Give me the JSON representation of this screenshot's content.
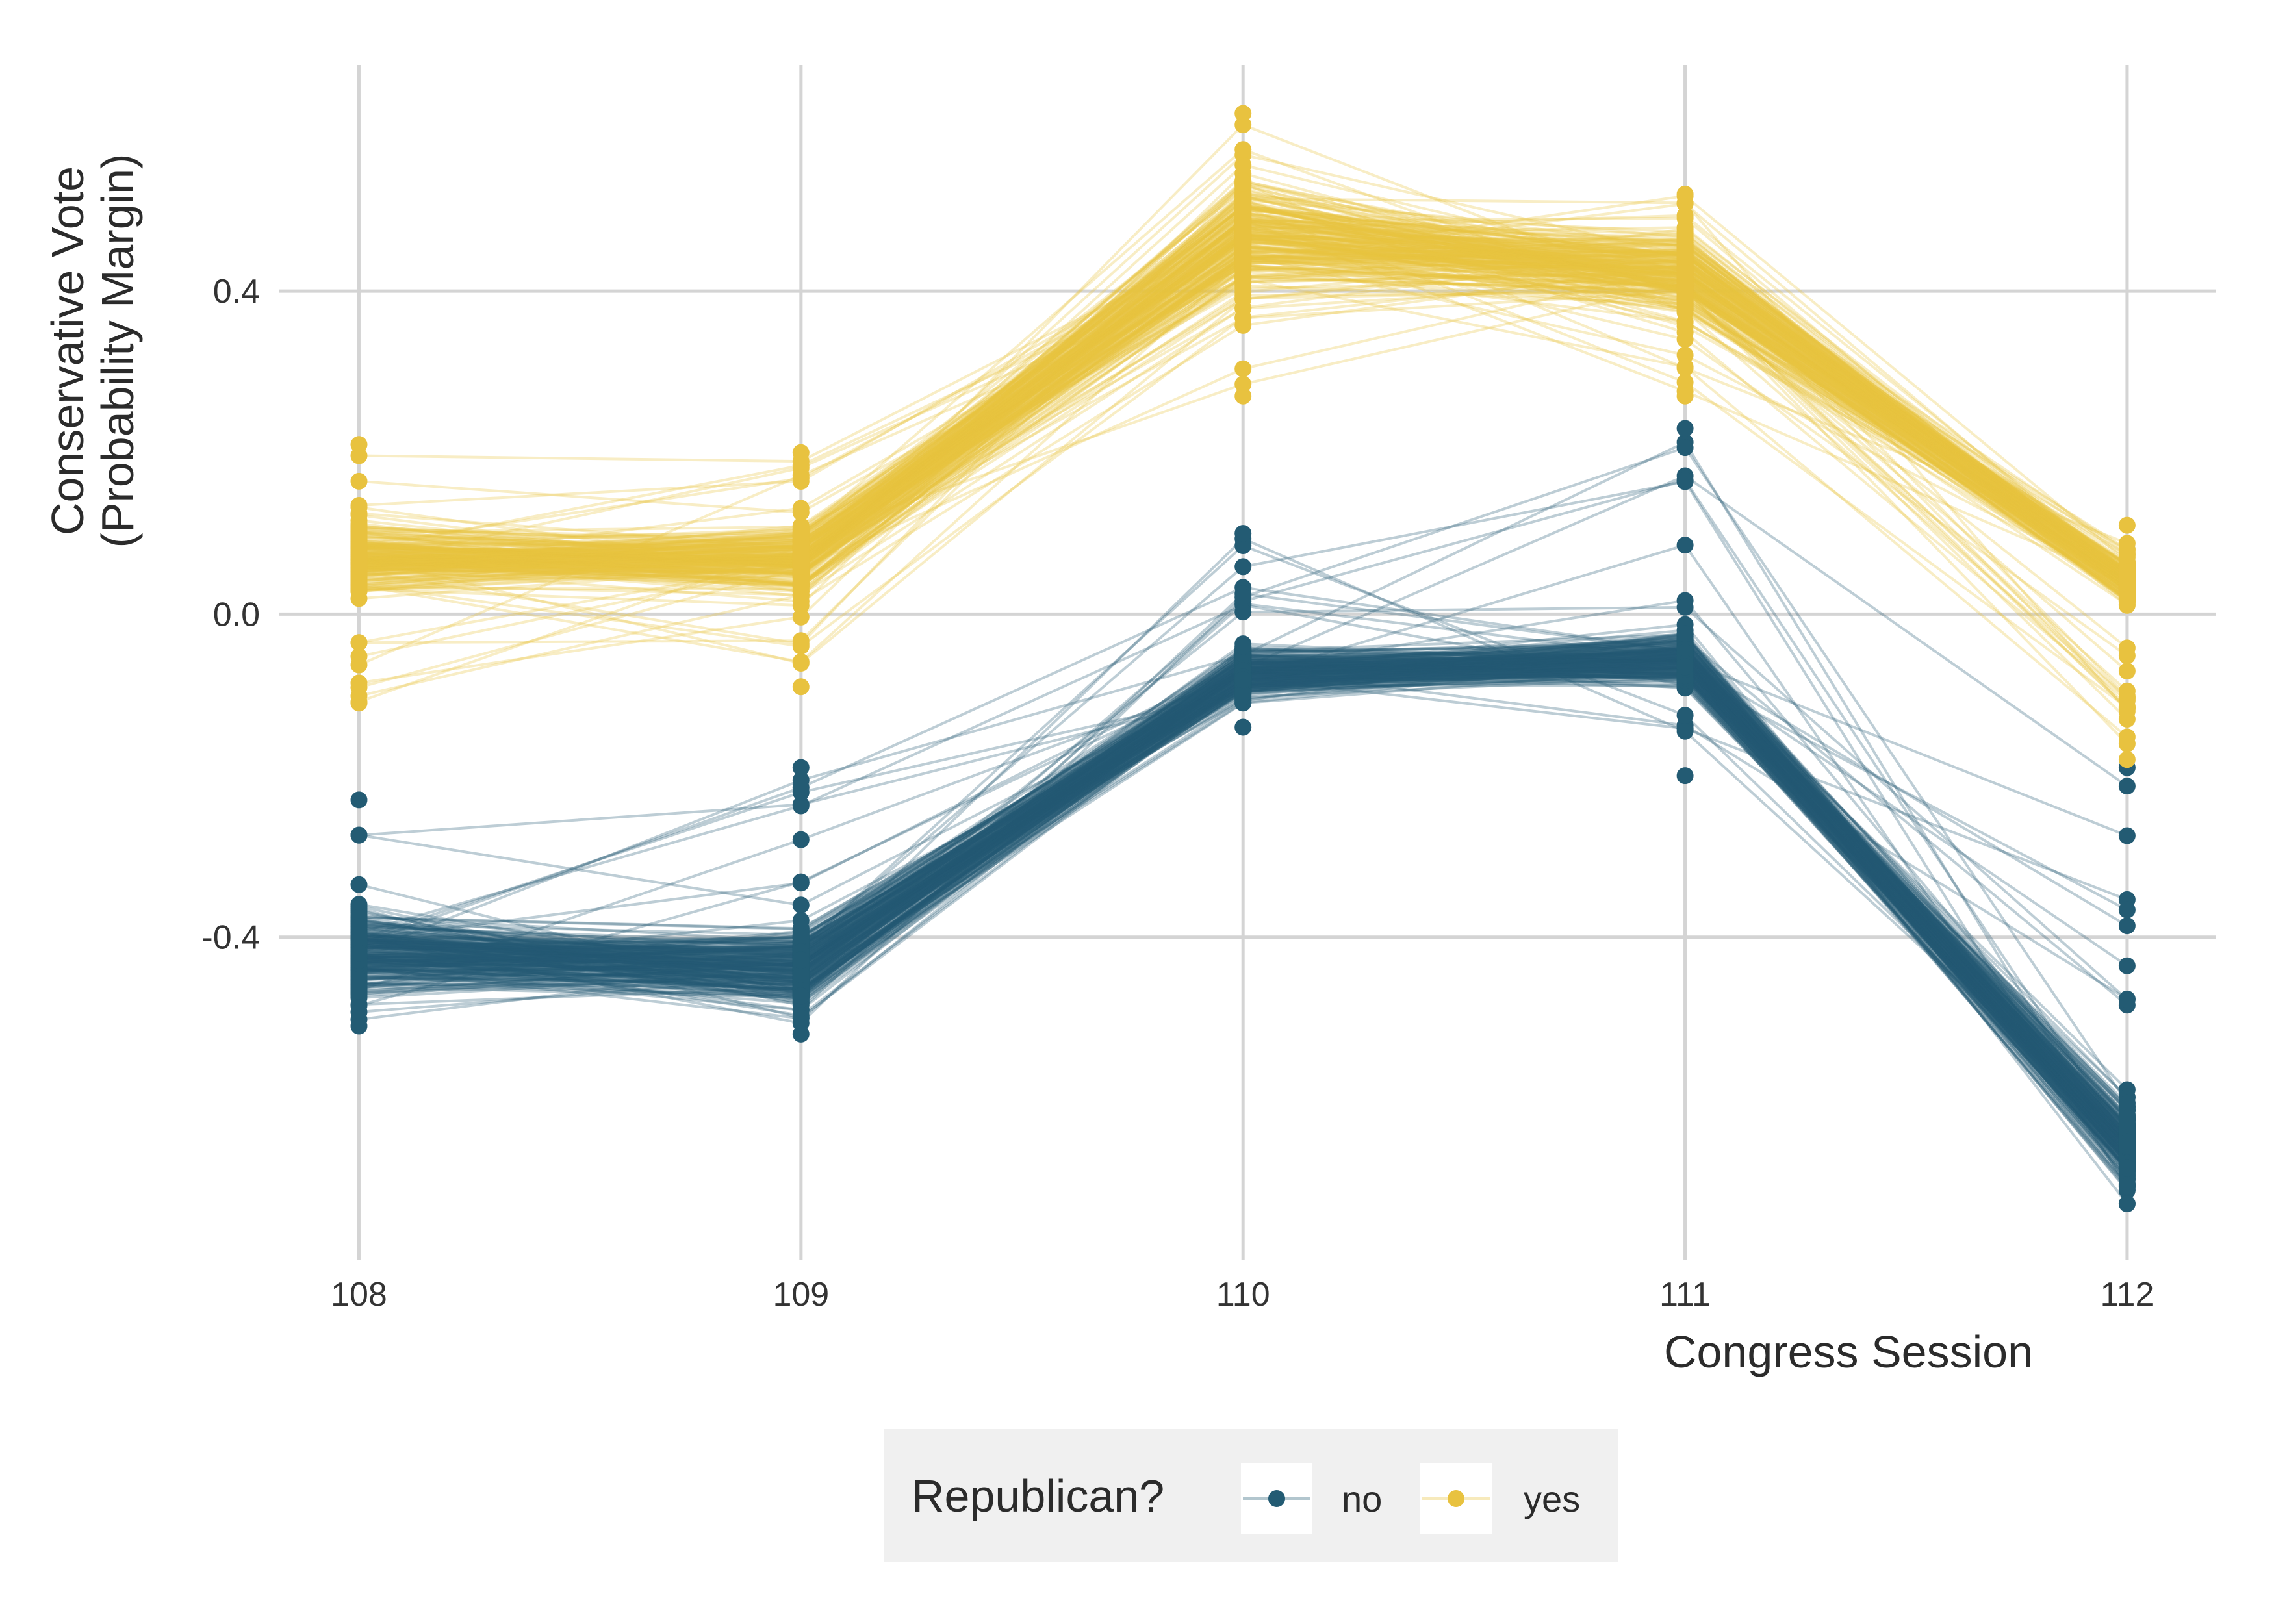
{
  "chart_data": {
    "type": "line",
    "title": "",
    "xlabel": "Congress Session",
    "ylabel_lines": [
      "Conservative Vote",
      "(Probability Margin)"
    ],
    "x": [
      108,
      109,
      110,
      111,
      112
    ],
    "x_tick_labels": [
      "108",
      "109",
      "110",
      "111",
      "112"
    ],
    "y_ticks": [
      0.4,
      0.0,
      -0.4
    ],
    "y_tick_labels": [
      "0.4",
      "0.0",
      "-0.4"
    ],
    "ylim": [
      -0.8,
      0.68
    ],
    "grid": true,
    "legend": {
      "title": "Republican?",
      "placement": "bottom",
      "entries": [
        {
          "label": "no",
          "color": "#235b73"
        },
        {
          "label": "yes",
          "color": "#e8c23f"
        }
      ]
    },
    "series": [
      {
        "key": "no",
        "color": "#235b73",
        "typical_path": [
          -0.42,
          -0.44,
          -0.075,
          -0.055,
          -0.66
        ],
        "ranges": [
          [
            -0.51,
            -0.23
          ],
          [
            -0.52,
            -0.19
          ],
          [
            -0.14,
            0.1
          ],
          [
            -0.2,
            0.23
          ],
          [
            -0.73,
            -0.19
          ]
        ]
      },
      {
        "key": "yes",
        "color": "#e8c23f",
        "typical_path": [
          0.07,
          0.07,
          0.47,
          0.42,
          0.04
        ],
        "ranges": [
          [
            -0.11,
            0.21
          ],
          [
            -0.09,
            0.2
          ],
          [
            0.27,
            0.62
          ],
          [
            0.27,
            0.52
          ],
          [
            -0.18,
            0.11
          ]
        ]
      }
    ]
  }
}
